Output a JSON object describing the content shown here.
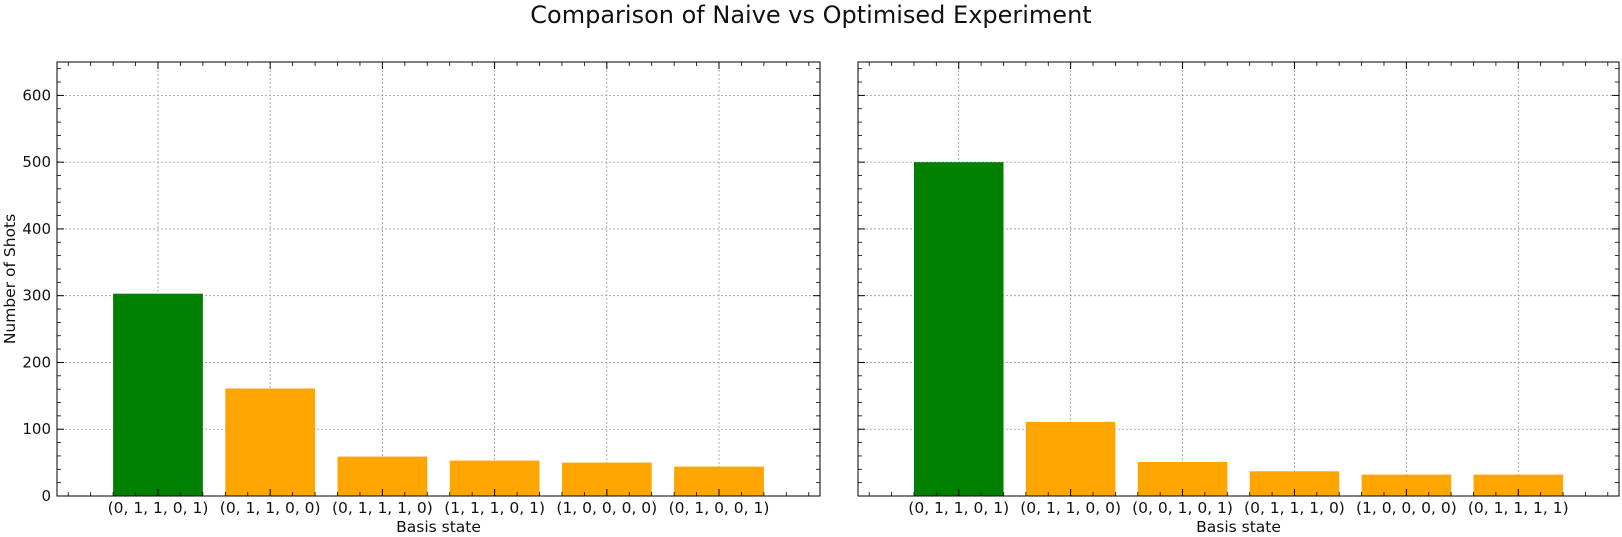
{
  "figure": {
    "title": "Comparison of Naive vs Optimised Experiment"
  },
  "colors": {
    "highlight": "#008000",
    "default": "#ffa500",
    "grid": "#9a9a9a",
    "axis": "#000000"
  },
  "chart_data": [
    {
      "type": "bar",
      "title": "",
      "xlabel": "Basis state",
      "ylabel": "Number of Shots",
      "ylim": [
        0,
        650
      ],
      "yticks": [
        0,
        100,
        200,
        300,
        400,
        500,
        600
      ],
      "show_yticklabels": true,
      "grid": true,
      "categories": [
        "(0, 1, 1, 0, 1)",
        "(0, 1, 1, 0, 0)",
        "(0, 1, 1, 1, 0)",
        "(1, 1, 1, 0, 1)",
        "(1, 0, 0, 0, 0)",
        "(0, 1, 0, 0, 1)"
      ],
      "values": [
        303,
        161,
        59,
        53,
        50,
        44
      ],
      "bar_colors": [
        "#008000",
        "#ffa500",
        "#ffa500",
        "#ffa500",
        "#ffa500",
        "#ffa500"
      ]
    },
    {
      "type": "bar",
      "title": "",
      "xlabel": "Basis state",
      "ylabel": "",
      "ylim": [
        0,
        650
      ],
      "yticks": [
        0,
        100,
        200,
        300,
        400,
        500,
        600
      ],
      "show_yticklabels": false,
      "grid": true,
      "categories": [
        "(0, 1, 1, 0, 1)",
        "(0, 1, 1, 0, 0)",
        "(0, 0, 1, 0, 1)",
        "(0, 1, 1, 1, 0)",
        "(1, 0, 0, 0, 0)",
        "(0, 1, 1, 1, 1)"
      ],
      "values": [
        500,
        111,
        51,
        37,
        32,
        32
      ],
      "bar_colors": [
        "#008000",
        "#ffa500",
        "#ffa500",
        "#ffa500",
        "#ffa500",
        "#ffa500"
      ]
    }
  ]
}
